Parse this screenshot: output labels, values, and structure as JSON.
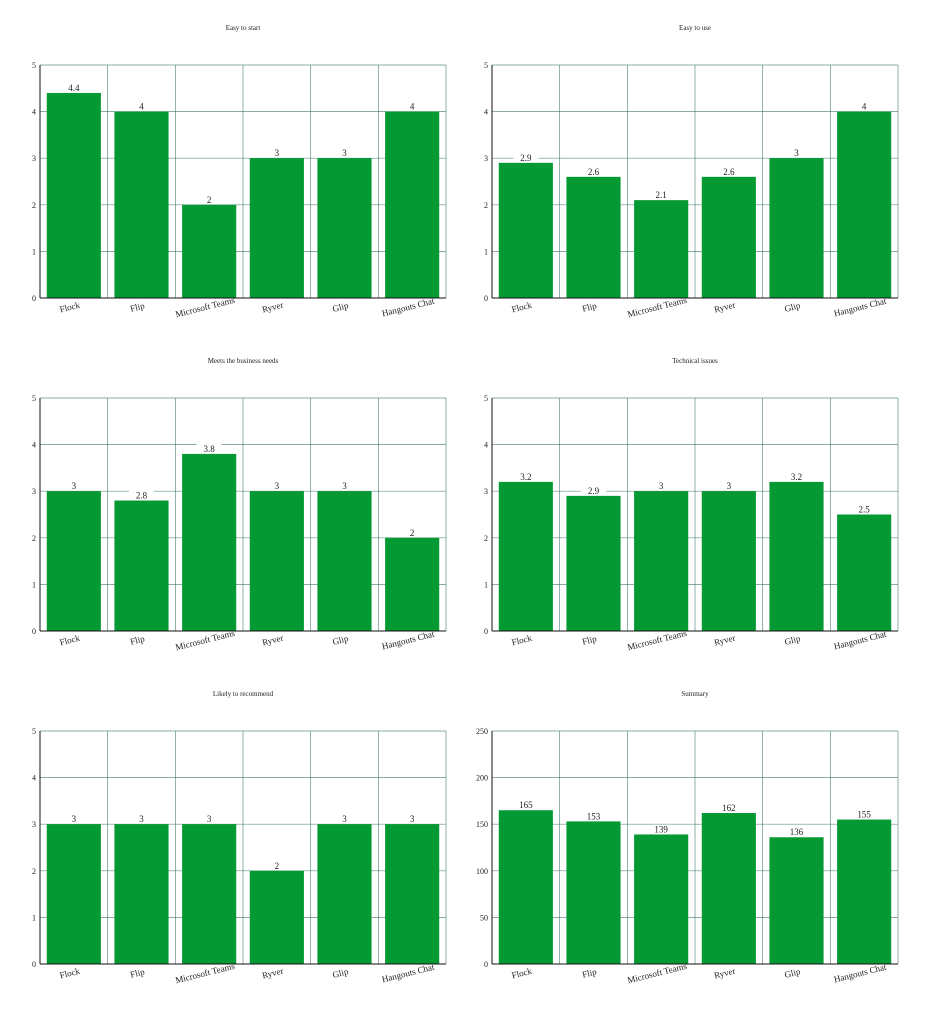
{
  "colors": {
    "bar": "#049933",
    "grid": "#2f6b5f",
    "axis": "#111111"
  },
  "chart_data": [
    {
      "type": "bar",
      "title": "Easy to start",
      "categories": [
        "Flock",
        "Flip",
        "Microsoft Teams",
        "Ryver",
        "Glip",
        "Hangouts Chat"
      ],
      "values": [
        4.4,
        4,
        2,
        3,
        3,
        4
      ],
      "value_labels": [
        "4.4",
        "4",
        "2",
        "3",
        "3",
        "4"
      ],
      "ylim": [
        0,
        5
      ],
      "yticks": [
        "0",
        "1",
        "2",
        "3",
        "4",
        "5"
      ],
      "grid": true,
      "legend": "none"
    },
    {
      "type": "bar",
      "title": "Easy to use",
      "categories": [
        "Flock",
        "Flip",
        "Microsoft Teams",
        "Ryver",
        "Glip",
        "Hangouts Chat"
      ],
      "values": [
        2.9,
        2.6,
        2.1,
        2.6,
        3,
        4
      ],
      "value_labels": [
        "2.9",
        "2.6",
        "2.1",
        "2.6",
        "3",
        "4"
      ],
      "ylim": [
        0,
        5
      ],
      "yticks": [
        "0",
        "1",
        "2",
        "3",
        "4",
        "5"
      ],
      "grid": true,
      "legend": "none"
    },
    {
      "type": "bar",
      "title": "Meets the business needs",
      "categories": [
        "Flock",
        "Flip",
        "Microsoft Teams",
        "Ryver",
        "Glip",
        "Hangouts Chat"
      ],
      "values": [
        3,
        2.8,
        3.8,
        3,
        3,
        2
      ],
      "value_labels": [
        "3",
        "2.8",
        "3.8",
        "3",
        "3",
        "2"
      ],
      "ylim": [
        0,
        5
      ],
      "yticks": [
        "0",
        "1",
        "2",
        "3",
        "4",
        "5"
      ],
      "grid": true,
      "legend": "none"
    },
    {
      "type": "bar",
      "title": "Technical issues",
      "categories": [
        "Flock",
        "Flip",
        "Microsoft Teams",
        "Ryver",
        "Glip",
        "Hangouts Chat"
      ],
      "values": [
        3.2,
        2.9,
        3,
        3,
        3.2,
        2.5
      ],
      "value_labels": [
        "3.2",
        "2.9",
        "3",
        "3",
        "3.2",
        "2.5"
      ],
      "ylim": [
        0,
        5
      ],
      "yticks": [
        "0",
        "1",
        "2",
        "3",
        "4",
        "5"
      ],
      "grid": true,
      "legend": "none"
    },
    {
      "type": "bar",
      "title": "Likely to recommend",
      "categories": [
        "Flock",
        "Flip",
        "Microsoft Teams",
        "Ryver",
        "Glip",
        "Hangouts Chat"
      ],
      "values": [
        3,
        3,
        3,
        2,
        3,
        3
      ],
      "value_labels": [
        "3",
        "3",
        "3",
        "2",
        "3",
        "3"
      ],
      "ylim": [
        0,
        5
      ],
      "yticks": [
        "0",
        "1",
        "2",
        "3",
        "4",
        "5"
      ],
      "grid": true,
      "legend": "none"
    },
    {
      "type": "bar",
      "title": "Summary",
      "categories": [
        "Flock",
        "Flip",
        "Microsoft Teams",
        "Ryver",
        "Glip",
        "Hangouts Chat"
      ],
      "values": [
        165,
        153,
        139,
        162,
        136,
        155
      ],
      "value_labels": [
        "165",
        "153",
        "139",
        "162",
        "136",
        "155"
      ],
      "ylim": [
        0,
        250
      ],
      "yticks": [
        "0",
        "50",
        "100",
        "150",
        "200",
        "250"
      ],
      "grid": true,
      "legend": "none"
    }
  ]
}
